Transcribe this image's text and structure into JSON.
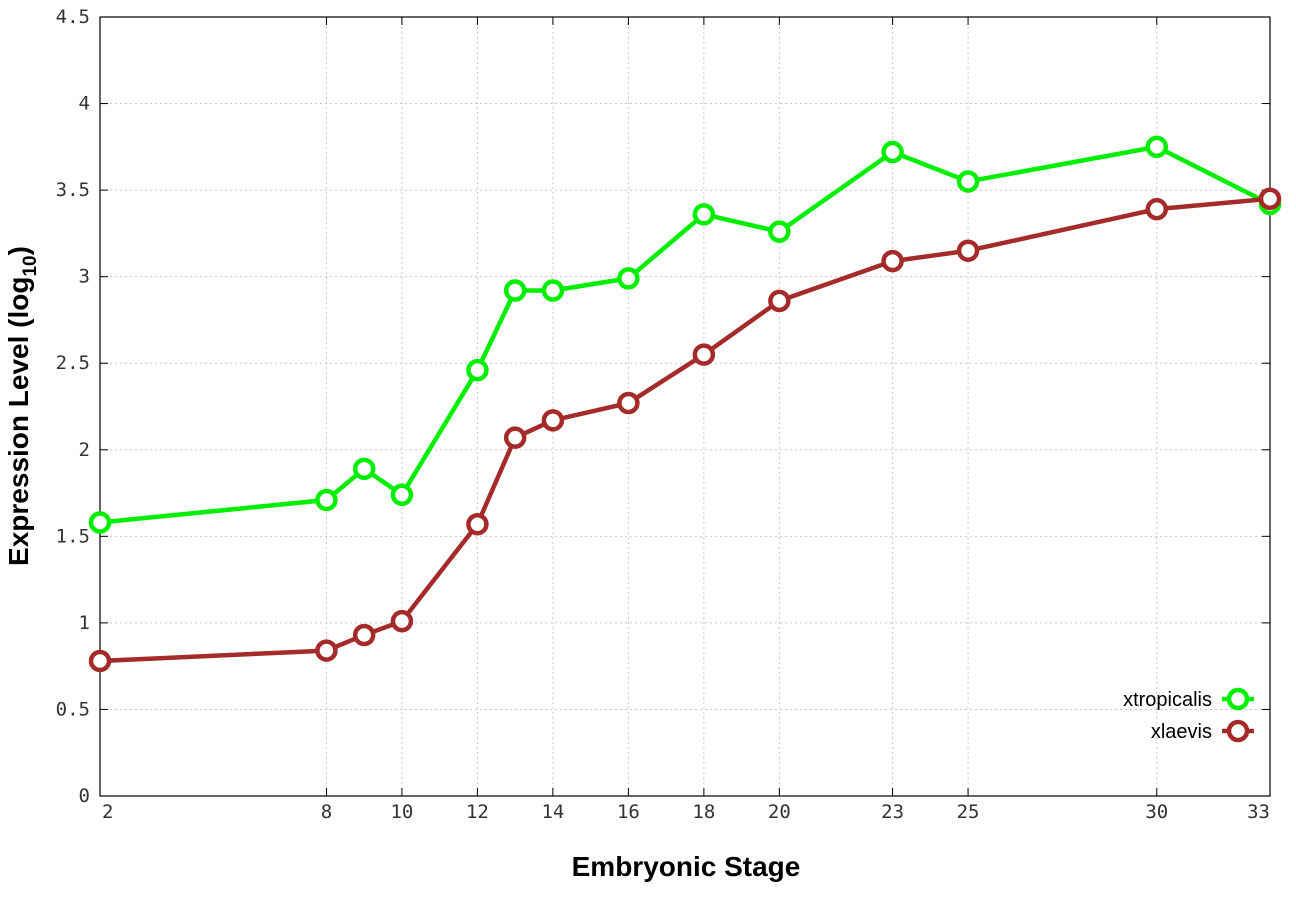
{
  "chart_data": {
    "type": "line",
    "title": "",
    "xlabel": "Embryonic Stage",
    "ylabel": "Expression Level (log10)",
    "ylabel_main": "Expression Level (log",
    "ylabel_sub": "10",
    "ylabel_close": ")",
    "xlim": [
      2,
      33
    ],
    "ylim": [
      0,
      4.5
    ],
    "x": [
      2,
      8,
      9,
      10,
      12,
      13,
      14,
      16,
      18,
      20,
      23,
      25,
      30,
      33
    ],
    "x_ticks": [
      "2",
      "8",
      "10",
      "12",
      "14",
      "16",
      "18",
      "20",
      "23",
      "25",
      "30",
      "33"
    ],
    "y_ticks": [
      "0",
      "0.5",
      "1",
      "1.5",
      "2",
      "2.5",
      "3",
      "3.5",
      "4",
      "4.5"
    ],
    "grid": true,
    "legend_position": "bottom-right",
    "series": [
      {
        "name": "xtropicalis",
        "color": "#00ee00",
        "values": [
          1.58,
          1.71,
          1.89,
          1.74,
          2.46,
          2.92,
          2.92,
          2.99,
          3.36,
          3.26,
          3.72,
          3.55,
          3.75,
          3.42
        ]
      },
      {
        "name": "xlaevis",
        "color": "#a52a2a",
        "values": [
          0.78,
          0.84,
          0.93,
          1.01,
          1.57,
          2.07,
          2.17,
          2.27,
          2.55,
          2.86,
          3.09,
          3.15,
          3.39,
          3.45
        ]
      }
    ]
  }
}
